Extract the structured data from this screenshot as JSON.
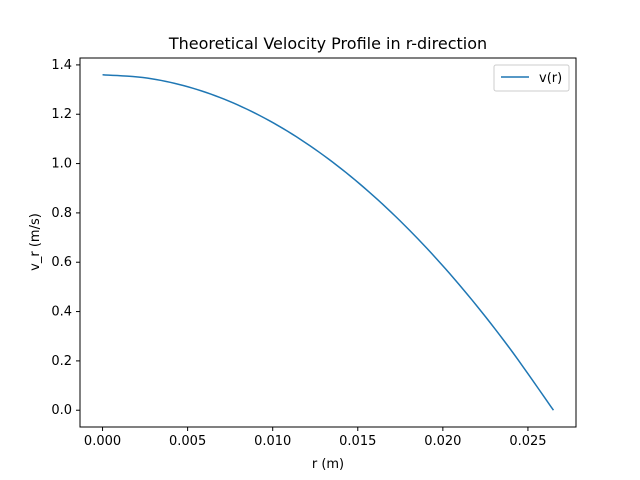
{
  "chart_data": {
    "type": "line",
    "title": "Theoretical Velocity Profile in r-direction",
    "xlabel": "r (m)",
    "ylabel": "v_r (m/s)",
    "xlim": [
      -0.001325,
      0.027825
    ],
    "ylim": [
      -0.068,
      1.428
    ],
    "xticks": [
      0.0,
      0.005,
      0.01,
      0.015,
      0.02,
      0.025
    ],
    "xtick_labels": [
      "0.000",
      "0.005",
      "0.010",
      "0.015",
      "0.020",
      "0.025"
    ],
    "yticks": [
      0.0,
      0.2,
      0.4,
      0.6,
      0.8,
      1.0,
      1.2,
      1.4
    ],
    "ytick_labels": [
      "0.0",
      "0.2",
      "0.4",
      "0.6",
      "0.8",
      "1.0",
      "1.2",
      "1.4"
    ],
    "grid": false,
    "legend": {
      "position": "upper right",
      "entries": [
        "v(r)"
      ]
    },
    "series": [
      {
        "name": "v(r)",
        "color": "#1f77b4",
        "x": [
          0.0,
          0.00265,
          0.0053,
          0.00795,
          0.0106,
          0.01325,
          0.0159,
          0.01855,
          0.0212,
          0.02385,
          0.0265
        ],
        "y": [
          1.36,
          1.3464,
          1.3056,
          1.2376,
          1.1424,
          1.02,
          0.8704,
          0.6936,
          0.4896,
          0.2584,
          0.0
        ]
      }
    ]
  }
}
